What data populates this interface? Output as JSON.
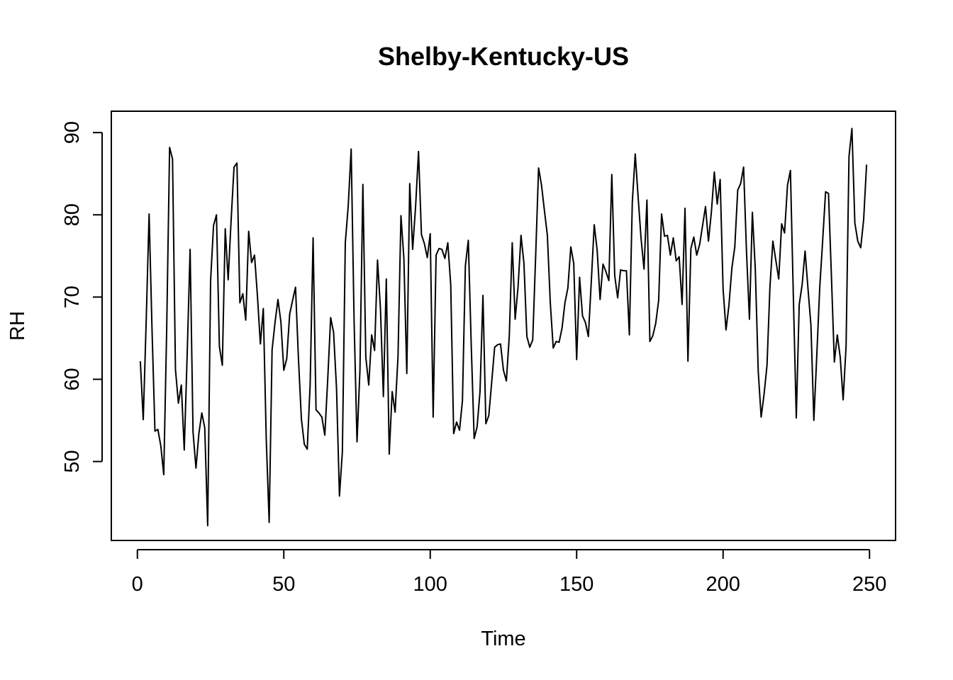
{
  "chart_data": {
    "type": "line",
    "title": "Shelby-Kentucky-US",
    "xlabel": "Time",
    "ylabel": "RH",
    "xlim": [
      -8.9,
      258.9
    ],
    "ylim": [
      40.4,
      92.6
    ],
    "xticks": [
      0,
      50,
      100,
      150,
      200,
      250
    ],
    "yticks": [
      50,
      60,
      70,
      80,
      90
    ],
    "grid": false,
    "legend": "none",
    "colors": {
      "line": "#000000",
      "background": "#ffffff"
    },
    "series": [
      {
        "x_start": 1,
        "x_step": 1,
        "values": [
          62.2,
          55.1,
          67.0,
          80.1,
          66.0,
          53.7,
          53.9,
          51.9,
          48.4,
          66.0,
          88.2,
          86.8,
          61.2,
          57.1,
          59.3,
          51.4,
          63.0,
          75.8,
          53.6,
          49.2,
          53.4,
          55.9,
          54.1,
          42.2,
          72.0,
          78.7,
          80.0,
          64.0,
          61.7,
          78.3,
          72.1,
          79.3,
          85.8,
          86.3,
          69.3,
          70.4,
          67.2,
          78.0,
          74.2,
          75.1,
          70.1,
          64.3,
          68.6,
          52.8,
          42.6,
          63.6,
          66.9,
          69.7,
          67.0,
          61.1,
          62.5,
          67.9,
          69.6,
          71.2,
          62.5,
          55.2,
          52.1,
          51.5,
          59.4,
          77.2,
          56.3,
          55.9,
          55.4,
          53.2,
          60.0,
          67.5,
          65.7,
          58.9,
          45.8,
          51.2,
          76.6,
          81.1,
          88.0,
          67.1,
          52.4,
          61.1,
          83.7,
          62.7,
          59.3,
          65.4,
          63.5,
          74.5,
          68.6,
          57.9,
          72.2,
          50.9,
          58.5,
          56.0,
          62.8,
          79.9,
          74.7,
          60.7,
          83.8,
          75.8,
          81.0,
          87.7,
          77.6,
          76.5,
          74.8,
          77.7,
          55.4,
          75.1,
          75.9,
          75.8,
          74.7,
          76.6,
          71.5,
          53.4,
          54.8,
          53.8,
          57.4,
          73.8,
          76.9,
          64.2,
          52.8,
          54.2,
          58.5,
          70.2,
          54.6,
          55.6,
          59.7,
          63.9,
          64.2,
          64.3,
          61.1,
          59.8,
          65.3,
          76.6,
          67.3,
          71.3,
          77.5,
          74.1,
          65.2,
          63.9,
          64.8,
          75.0,
          85.7,
          83.6,
          80.5,
          77.5,
          69.3,
          63.8,
          64.6,
          64.5,
          66.2,
          69.3,
          71.1,
          76.1,
          74.1,
          62.4,
          72.4,
          67.7,
          66.9,
          65.2,
          71.9,
          78.8,
          75.7,
          69.7,
          74.0,
          73.1,
          72.0,
          84.9,
          72.6,
          69.9,
          73.3,
          73.2,
          73.2,
          65.4,
          81.5,
          87.4,
          82.1,
          77.1,
          73.4,
          81.8,
          64.6,
          65.3,
          66.8,
          69.6,
          80.1,
          77.4,
          77.5,
          75.1,
          77.2,
          74.4,
          74.9,
          69.1,
          80.8,
          62.2,
          75.9,
          77.3,
          75.1,
          76.4,
          78.7,
          81.0,
          76.8,
          80.3,
          85.2,
          81.3,
          84.3,
          71.0,
          66.0,
          69.0,
          73.5,
          76.1,
          83.0,
          83.8,
          85.8,
          75.5,
          67.3,
          80.3,
          73.4,
          61.0,
          55.4,
          58.2,
          61.7,
          71.2,
          76.8,
          74.5,
          72.2,
          78.9,
          77.8,
          83.6,
          85.4,
          70.0,
          55.3,
          69.1,
          71.5,
          75.6,
          71.0,
          66.6,
          55.0,
          62.9,
          71.1,
          76.8,
          82.8,
          82.6,
          72.5,
          62.1,
          65.4,
          62.7,
          57.5,
          64.0,
          87.1,
          90.5,
          79.0,
          76.8,
          76.0,
          79.4,
          86.1
        ]
      }
    ]
  }
}
